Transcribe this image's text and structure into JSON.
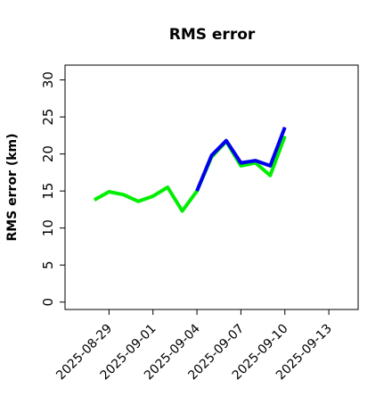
{
  "chart_data": {
    "type": "line",
    "title": "RMS error",
    "y_label": "RMS error (km)",
    "x": [
      "2025-08-28",
      "2025-08-29",
      "2025-08-30",
      "2025-08-31",
      "2025-09-01",
      "2025-09-02",
      "2025-09-03",
      "2025-09-04",
      "2025-09-05",
      "2025-09-06",
      "2025-09-07",
      "2025-09-08",
      "2025-09-09",
      "2025-09-10"
    ],
    "series": [
      {
        "color": "#00ee00",
        "values": [
          13.8,
          14.9,
          14.5,
          13.6,
          14.3,
          15.5,
          12.3,
          15.0,
          19.6,
          21.7,
          18.4,
          18.8,
          17.1,
          22.4
        ]
      },
      {
        "color": "#0000ee",
        "values": [
          null,
          null,
          null,
          null,
          null,
          null,
          null,
          15.0,
          19.8,
          21.8,
          18.8,
          19.1,
          18.4,
          23.6
        ]
      }
    ],
    "xlim": [
      "2025-08-26",
      "2025-09-15"
    ],
    "xticks": [
      "2025-08-29",
      "2025-09-01",
      "2025-09-04",
      "2025-09-07",
      "2025-09-10",
      "2025-09-13"
    ],
    "xtick_colors": [
      "#000000",
      "#000000",
      "#228b22",
      "#000000",
      "#000000",
      "#000000"
    ],
    "ylim": [
      -1,
      32
    ],
    "yticks": [
      0,
      5,
      10,
      15,
      20,
      25,
      30
    ]
  }
}
